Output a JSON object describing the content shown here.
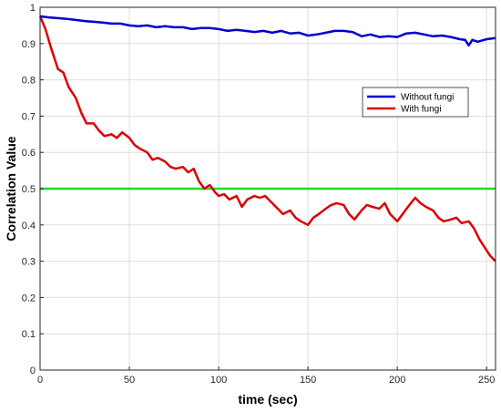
{
  "chart_data": {
    "type": "line",
    "title": "",
    "xlabel": "time (sec)",
    "ylabel": "Correlation Value",
    "xlim": [
      0,
      255
    ],
    "ylim": [
      0,
      1
    ],
    "xticks": [
      0,
      50,
      100,
      150,
      200,
      250
    ],
    "yticks": [
      0,
      0.1,
      0.2,
      0.3,
      0.4,
      0.5,
      0.6,
      0.7,
      0.8,
      0.9,
      1
    ],
    "grid": true,
    "legend_position": "right",
    "series": [
      {
        "name": "Without fungi",
        "color": "#0000cc",
        "x": [
          0,
          5,
          10,
          15,
          20,
          25,
          30,
          35,
          40,
          45,
          50,
          55,
          60,
          65,
          70,
          75,
          80,
          85,
          90,
          95,
          100,
          105,
          110,
          115,
          120,
          125,
          130,
          135,
          140,
          145,
          150,
          155,
          160,
          165,
          170,
          175,
          180,
          185,
          190,
          195,
          200,
          205,
          210,
          215,
          220,
          225,
          230,
          235,
          238,
          240,
          242,
          245,
          250,
          255
        ],
        "y": [
          0.975,
          0.972,
          0.97,
          0.968,
          0.965,
          0.962,
          0.96,
          0.958,
          0.955,
          0.955,
          0.95,
          0.948,
          0.95,
          0.945,
          0.948,
          0.945,
          0.945,
          0.94,
          0.943,
          0.943,
          0.94,
          0.935,
          0.938,
          0.935,
          0.932,
          0.935,
          0.93,
          0.935,
          0.928,
          0.93,
          0.922,
          0.925,
          0.93,
          0.935,
          0.935,
          0.932,
          0.92,
          0.925,
          0.918,
          0.92,
          0.918,
          0.928,
          0.93,
          0.925,
          0.92,
          0.922,
          0.918,
          0.912,
          0.91,
          0.895,
          0.91,
          0.905,
          0.912,
          0.915
        ]
      },
      {
        "name": "With fungi",
        "color": "#dd0000",
        "x": [
          0,
          3,
          6,
          10,
          13,
          16,
          20,
          23,
          26,
          30,
          33,
          36,
          40,
          43,
          46,
          50,
          53,
          56,
          60,
          63,
          66,
          70,
          73,
          76,
          80,
          83,
          86,
          89,
          92,
          95,
          98,
          100,
          103,
          106,
          110,
          113,
          116,
          120,
          123,
          126,
          130,
          133,
          136,
          140,
          143,
          146,
          150,
          153,
          156,
          160,
          163,
          166,
          170,
          173,
          176,
          180,
          183,
          186,
          190,
          193,
          196,
          200,
          203,
          206,
          210,
          213,
          216,
          220,
          223,
          226,
          230,
          233,
          236,
          240,
          243,
          246,
          250,
          252,
          255
        ],
        "y": [
          0.975,
          0.94,
          0.89,
          0.83,
          0.82,
          0.78,
          0.75,
          0.71,
          0.68,
          0.68,
          0.66,
          0.645,
          0.65,
          0.64,
          0.655,
          0.64,
          0.62,
          0.61,
          0.6,
          0.58,
          0.585,
          0.575,
          0.56,
          0.555,
          0.56,
          0.545,
          0.555,
          0.52,
          0.5,
          0.51,
          0.49,
          0.48,
          0.485,
          0.47,
          0.48,
          0.45,
          0.47,
          0.48,
          0.475,
          0.48,
          0.46,
          0.445,
          0.43,
          0.44,
          0.42,
          0.41,
          0.4,
          0.42,
          0.43,
          0.445,
          0.455,
          0.46,
          0.455,
          0.43,
          0.415,
          0.44,
          0.455,
          0.45,
          0.445,
          0.46,
          0.43,
          0.41,
          0.43,
          0.45,
          0.475,
          0.46,
          0.45,
          0.44,
          0.42,
          0.41,
          0.415,
          0.42,
          0.405,
          0.41,
          0.39,
          0.36,
          0.33,
          0.315,
          0.3
        ]
      },
      {
        "name": "",
        "color": "#22dd22",
        "x": [
          0,
          255
        ],
        "y": [
          0.5,
          0.5
        ]
      }
    ]
  }
}
